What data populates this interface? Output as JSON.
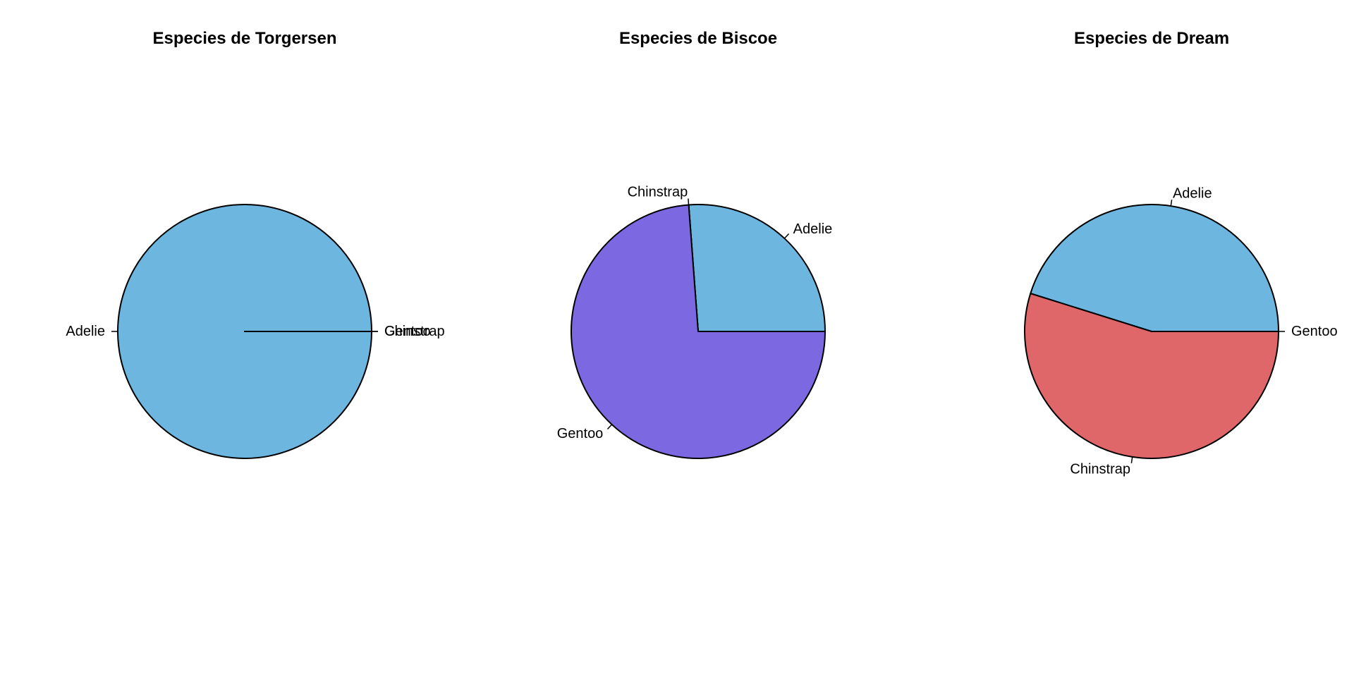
{
  "chart_data": [
    {
      "type": "pie",
      "title": "Especies de Torgersen",
      "labels": [
        "Adelie",
        "Chinstrap",
        "Gentoo"
      ],
      "values": [
        52,
        0,
        0
      ],
      "colors": [
        "#6CB6DF",
        "#7C68E0",
        "#DF6669"
      ],
      "direction": "counterclockwise",
      "start_angle": "3 o'clock"
    },
    {
      "type": "pie",
      "title": "Especies de Biscoe",
      "labels": [
        "Adelie",
        "Chinstrap",
        "Gentoo"
      ],
      "values": [
        44,
        0,
        124
      ],
      "colors": [
        "#6CB6DF",
        "#7C68E0",
        "#7C68E0"
      ],
      "direction": "counterclockwise",
      "start_angle": "3 o'clock"
    },
    {
      "type": "pie",
      "title": "Especies de Dream",
      "labels": [
        "Adelie",
        "Chinstrap",
        "Gentoo"
      ],
      "values": [
        56,
        68,
        0
      ],
      "colors": [
        "#6CB6DF",
        "#DF6669",
        "#DF6669"
      ],
      "direction": "counterclockwise",
      "start_angle": "3 o'clock"
    }
  ]
}
